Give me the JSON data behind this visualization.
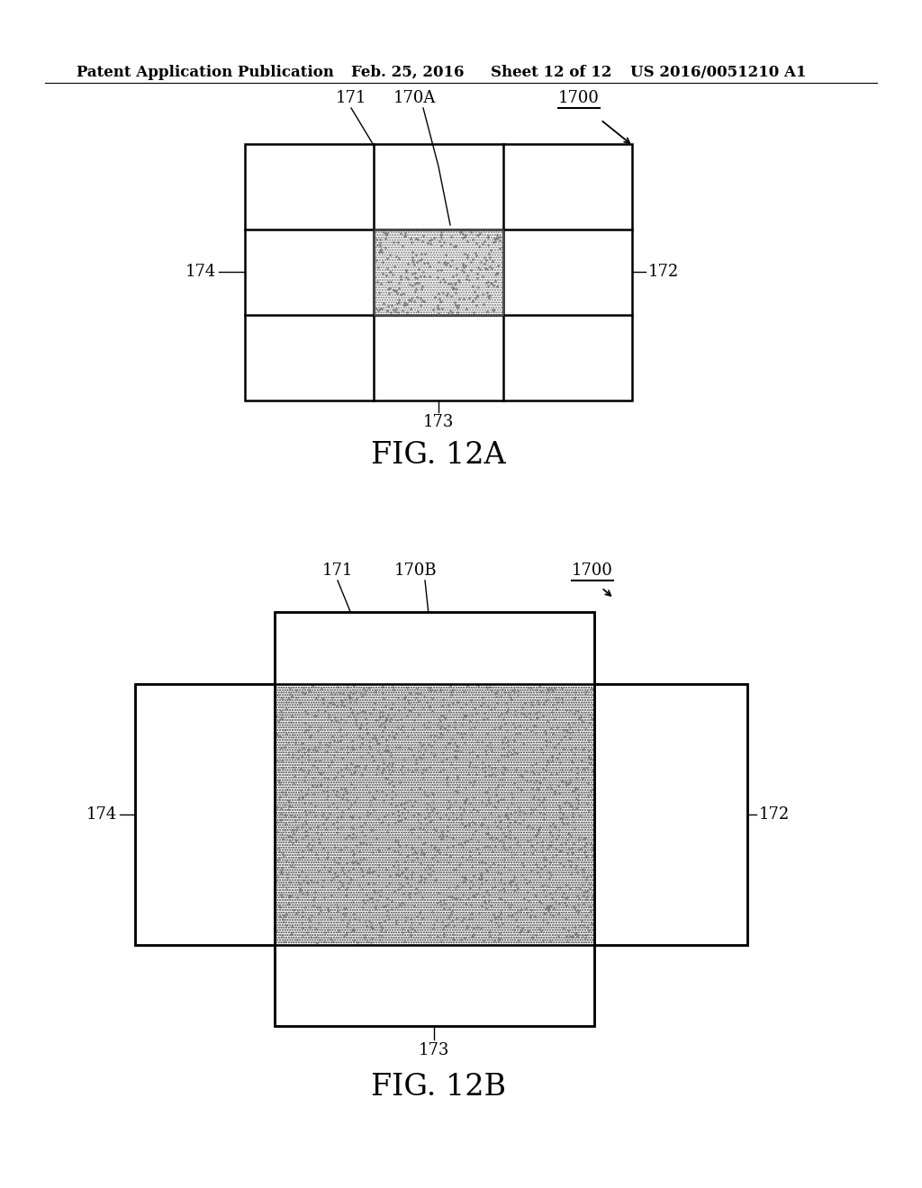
{
  "bg_color": "#ffffff",
  "header_text": "Patent Application Publication",
  "header_date": "Feb. 25, 2016",
  "header_sheet": "Sheet 12 of 12",
  "header_patent": "US 2016/0051210 A1",
  "fig12a_label": "FIG. 12A",
  "fig12b_label": "FIG. 12B",
  "line_color": "#000000",
  "label_fontsize": 13,
  "fig_label_fontsize": 24,
  "header_fontsize": 12
}
